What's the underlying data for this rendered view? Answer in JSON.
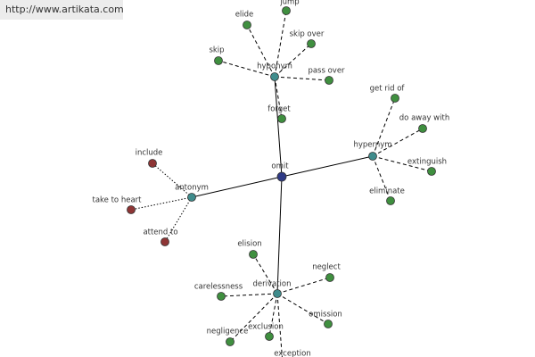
{
  "header": {
    "url": "http://www.artikata.com"
  },
  "nodes": [
    {
      "label": "omit"
    },
    {
      "label": "hyponym"
    },
    {
      "label": "hypernym"
    },
    {
      "label": "antonym"
    },
    {
      "label": "derivation"
    },
    {
      "label": "elide"
    },
    {
      "label": "jump"
    },
    {
      "label": "skip over"
    },
    {
      "label": "skip"
    },
    {
      "label": "pass over"
    },
    {
      "label": "forget"
    },
    {
      "label": "get rid of"
    },
    {
      "label": "do away with"
    },
    {
      "label": "extinguish"
    },
    {
      "label": "eliminate"
    },
    {
      "label": "include"
    },
    {
      "label": "take to heart"
    },
    {
      "label": "attend to"
    },
    {
      "label": "elision"
    },
    {
      "label": "neglect"
    },
    {
      "label": "carelessness"
    },
    {
      "label": "negligence"
    },
    {
      "label": "exclusion"
    },
    {
      "label": "omission"
    },
    {
      "label": "exception"
    }
  ]
}
